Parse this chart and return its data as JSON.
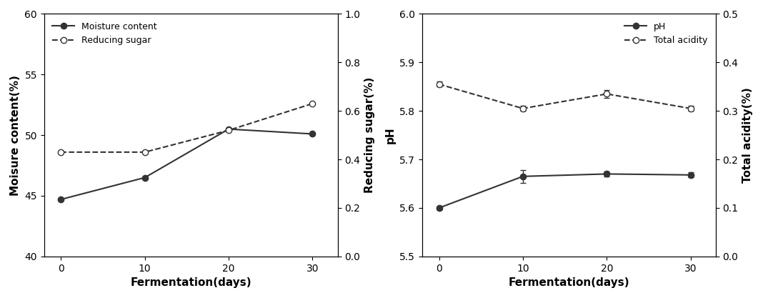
{
  "x": [
    0,
    10,
    20,
    30
  ],
  "moisture_content": [
    44.7,
    46.5,
    50.5,
    50.1
  ],
  "reducing_sugar": [
    0.43,
    0.43,
    0.52,
    0.63
  ],
  "ph": [
    5.6,
    5.665,
    5.67,
    5.668
  ],
  "ph_yerr": [
    0.003,
    0.013,
    0.005,
    0.005
  ],
  "total_acidity": [
    0.355,
    0.305,
    0.335,
    0.305
  ],
  "total_acidity_yerr": [
    0.005,
    0.005,
    0.008,
    0.005
  ],
  "left_ylabel": "Moisure content(%)",
  "left_ylim": [
    40,
    60
  ],
  "left_yticks": [
    40,
    45,
    50,
    55,
    60
  ],
  "right_ylabel": "Reducing sugar(%)",
  "right_ylim": [
    0,
    1.0
  ],
  "right_yticks": [
    0,
    0.2,
    0.4,
    0.6,
    0.8,
    1.0
  ],
  "ph_ylabel": "pH",
  "ph_ylim": [
    5.5,
    6.0
  ],
  "ph_yticks": [
    5.5,
    5.6,
    5.7,
    5.8,
    5.9,
    6.0
  ],
  "acidity_ylabel": "Total acidity(%)",
  "acidity_ylim": [
    0,
    0.5
  ],
  "acidity_yticks": [
    0,
    0.1,
    0.2,
    0.3,
    0.4,
    0.5
  ],
  "xlabel": "Fermentation(days)",
  "xticks": [
    0,
    10,
    20,
    30
  ],
  "line_color": "#333333",
  "legend1_labels": [
    "Moisture content",
    "Reducing sugar"
  ],
  "legend2_labels": [
    "pH",
    "Total acidity"
  ],
  "figsize": [
    10.68,
    4.17
  ],
  "dpi": 100
}
